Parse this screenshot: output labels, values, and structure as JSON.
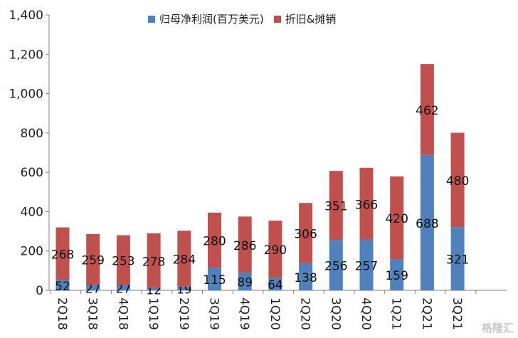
{
  "chart_data": {
    "type": "bar",
    "stacked": true,
    "categories": [
      "2Q18",
      "3Q18",
      "4Q18",
      "1Q19",
      "2Q19",
      "3Q19",
      "4Q19",
      "1Q20",
      "2Q20",
      "3Q20",
      "4Q20",
      "1Q21",
      "2Q21",
      "3Q21"
    ],
    "series": [
      {
        "name": "归母净利润(百万美元)",
        "color": "#4f81bd",
        "values": [
          52,
          27,
          27,
          12,
          19,
          115,
          89,
          64,
          138,
          256,
          257,
          159,
          688,
          321
        ]
      },
      {
        "name": "折旧&摊销",
        "color": "#c0504d",
        "values": [
          268,
          259,
          253,
          278,
          284,
          280,
          286,
          290,
          306,
          351,
          366,
          420,
          462,
          480
        ]
      }
    ],
    "ylim": [
      0,
      1400
    ],
    "yticks": [
      0,
      200,
      400,
      600,
      800,
      1000,
      1200,
      1400
    ],
    "ytick_labels": [
      "0",
      "200",
      "400",
      "600",
      "800",
      "1,000",
      "1,200",
      "1,400"
    ],
    "legend_position": "top",
    "grid": false
  },
  "watermark": "格隆汇"
}
